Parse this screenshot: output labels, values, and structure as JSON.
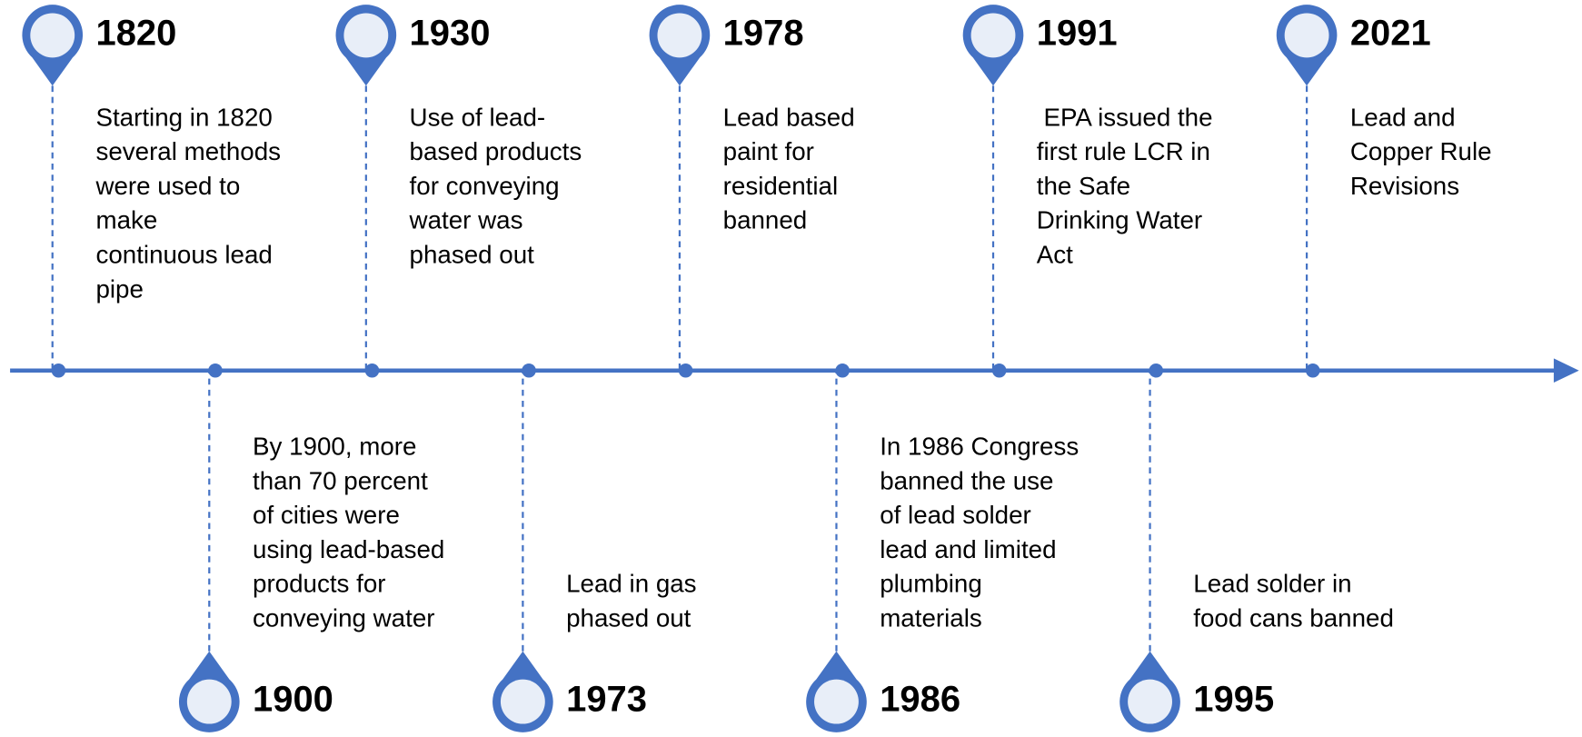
{
  "events": [
    {
      "year": "1820",
      "lines": [
        "Starting in 1820",
        "several methods",
        "were used to",
        "make",
        "continuous lead",
        "pipe"
      ]
    },
    {
      "year": "1900",
      "lines": [
        "By 1900, more",
        "than 70 percent",
        "of cities were",
        "using lead-based",
        "products for",
        "conveying water"
      ]
    },
    {
      "year": "1930",
      "lines": [
        "Use of lead-",
        "based products",
        "for conveying",
        "water was",
        "phased out"
      ]
    },
    {
      "year": "1973",
      "lines": [
        "Lead in gas",
        "phased out"
      ]
    },
    {
      "year": "1978",
      "lines": [
        "Lead based",
        "paint for",
        "residential",
        "banned"
      ]
    },
    {
      "year": "1986",
      "lines": [
        "In 1986 Congress",
        "banned the use",
        "of lead solder",
        "lead and limited",
        "plumbing",
        "materials"
      ]
    },
    {
      "year": "1991",
      "lines": [
        " EPA issued the",
        "first rule LCR in",
        "the Safe",
        "Drinking Water",
        "Act"
      ]
    },
    {
      "year": "1995",
      "lines": [
        "Lead solder in",
        "food cans banned"
      ]
    },
    {
      "year": "2021",
      "lines": [
        "Lead and",
        "Copper Rule",
        "Revisions"
      ]
    }
  ]
}
